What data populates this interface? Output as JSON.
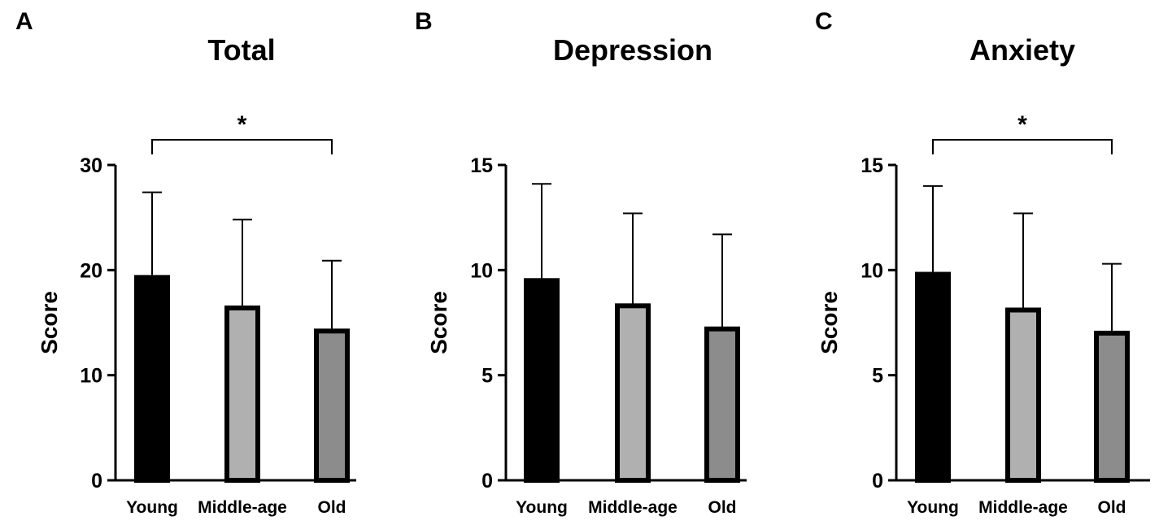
{
  "figure": {
    "colors": {
      "young": "#000000",
      "middle": "#b0b0b0",
      "old": "#8c8c8c",
      "outline": "#000000"
    }
  },
  "chart_data": [
    {
      "panel": "A",
      "type": "bar",
      "title": "Total",
      "xlabel": "",
      "ylabel": "Score",
      "ylim": [
        0,
        30
      ],
      "yticks": [
        0,
        10,
        20,
        30
      ],
      "categories": [
        "Young",
        "Middle-age",
        "Old"
      ],
      "values": [
        19.3,
        16.4,
        14.2
      ],
      "error_upper": [
        27.4,
        24.8,
        20.9
      ],
      "significance": {
        "from": "Young",
        "to": "Old",
        "label": "*"
      }
    },
    {
      "panel": "B",
      "type": "bar",
      "title": "Depression",
      "xlabel": "",
      "ylabel": "Score",
      "ylim": [
        0,
        15
      ],
      "yticks": [
        0,
        5,
        10,
        15
      ],
      "categories": [
        "Young",
        "Middle-age",
        "Old"
      ],
      "values": [
        9.5,
        8.3,
        7.2
      ],
      "error_upper": [
        14.1,
        12.7,
        11.7
      ],
      "significance": null
    },
    {
      "panel": "C",
      "type": "bar",
      "title": "Anxiety",
      "xlabel": "",
      "ylabel": "Score",
      "ylim": [
        0,
        15
      ],
      "yticks": [
        0,
        5,
        10,
        15
      ],
      "categories": [
        "Young",
        "Middle-age",
        "Old"
      ],
      "values": [
        9.8,
        8.1,
        7.0
      ],
      "error_upper": [
        14.0,
        12.7,
        10.3
      ],
      "significance": {
        "from": "Young",
        "to": "Old",
        "label": "*"
      }
    }
  ]
}
